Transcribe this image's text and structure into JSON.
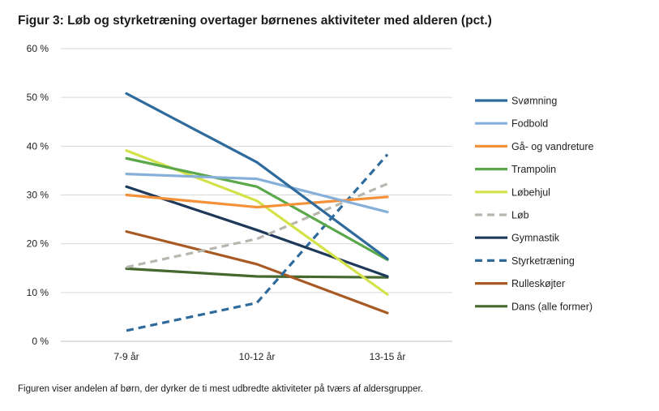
{
  "title": "Figur 3: Løb og styrketræning overtager børnenes aktiviteter med alderen (pct.)",
  "caption": "Figuren viser andelen af børn, der dyrker de ti mest udbredte aktiviteter på tværs af aldersgrupper.",
  "chart_data": {
    "type": "line",
    "categories": [
      "7-9 år",
      "10-12 år",
      "13-15 år"
    ],
    "y_tick_labels": [
      "0 %",
      "10 %",
      "20 %",
      "30 %",
      "40 %",
      "50 %",
      "60 %"
    ],
    "ylim": [
      0,
      60
    ],
    "grid": true,
    "legend_position": "right",
    "series": [
      {
        "name": "Svømning",
        "values": [
          50.8,
          36.7,
          16.9
        ],
        "color": "#2e6b9c",
        "dashed": false
      },
      {
        "name": "Fodbold",
        "values": [
          34.3,
          33.3,
          26.5
        ],
        "color": "#86afd9",
        "dashed": false
      },
      {
        "name": "Gå- og vandreture",
        "values": [
          30.0,
          27.5,
          29.6
        ],
        "color": "#f4923a",
        "dashed": false
      },
      {
        "name": "Trampolin",
        "values": [
          37.5,
          31.7,
          16.7
        ],
        "color": "#5aa84a",
        "dashed": false
      },
      {
        "name": "Løbehjul",
        "values": [
          39.1,
          28.8,
          9.6
        ],
        "color": "#d4e24a",
        "dashed": false
      },
      {
        "name": "Løb",
        "values": [
          15.2,
          21.0,
          32.3
        ],
        "color": "#b7b7b0",
        "dashed": true
      },
      {
        "name": "Gymnastik",
        "values": [
          31.7,
          22.8,
          13.3
        ],
        "color": "#1d3a5a",
        "dashed": false
      },
      {
        "name": "Styrketræning",
        "values": [
          2.2,
          7.9,
          38.3
        ],
        "color": "#2e6b9c",
        "dashed": true
      },
      {
        "name": "Rulleskøjter",
        "values": [
          22.5,
          15.8,
          5.8
        ],
        "color": "#a75a23",
        "dashed": false
      },
      {
        "name": "Dans (alle former)",
        "values": [
          14.9,
          13.3,
          13.1
        ],
        "color": "#44682e",
        "dashed": false
      }
    ]
  }
}
